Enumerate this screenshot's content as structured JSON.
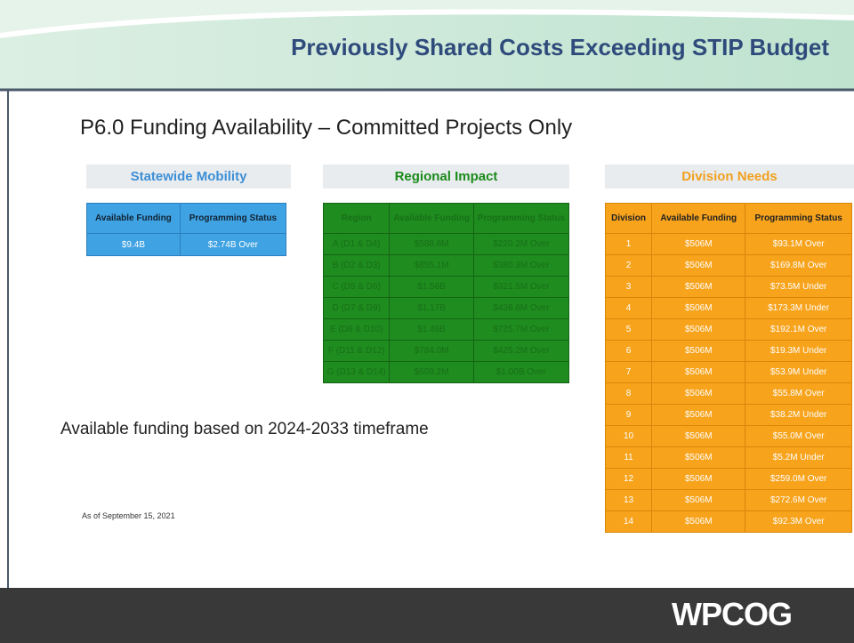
{
  "header": {
    "title": "Previously Shared Costs Exceeding STIP Budget"
  },
  "heading": "P6.0 Funding Availability – Committed Projects Only",
  "statewide": {
    "title": "Statewide Mobility",
    "columns": [
      "Available Funding",
      "Programming Status"
    ],
    "rows": [
      [
        "$9.4B",
        "$2.74B Over"
      ]
    ]
  },
  "regional": {
    "title": "Regional Impact",
    "columns": [
      "Region",
      "Available Funding",
      "Programming Status"
    ],
    "rows": [
      [
        "A (D1 & D4)",
        "$588.8M",
        "$220.2M Over"
      ],
      [
        "B (D2 & D3)",
        "$855.1M",
        "$380.3M Over"
      ],
      [
        "C (D5 & D6)",
        "$1.56B",
        "$321.5M Over"
      ],
      [
        "D (D7 & D9)",
        "$1.17B",
        "$438.6M Over"
      ],
      [
        "E (D8 & D10)",
        "$1.46B",
        "$725.7M Over"
      ],
      [
        "F (D11 & D12)",
        "$784.0M",
        "$425.2M Over"
      ],
      [
        "G (D13 & D14)",
        "$609.2M",
        "$1.00B Over"
      ]
    ]
  },
  "division": {
    "title": "Division Needs",
    "columns": [
      "Division",
      "Available Funding",
      "Programming Status"
    ],
    "rows": [
      [
        "1",
        "$506M",
        "$93.1M Over"
      ],
      [
        "2",
        "$506M",
        "$169.8M Over"
      ],
      [
        "3",
        "$506M",
        "$73.5M Under"
      ],
      [
        "4",
        "$506M",
        "$173.3M Under"
      ],
      [
        "5",
        "$506M",
        "$192.1M Over"
      ],
      [
        "6",
        "$506M",
        "$19.3M Under"
      ],
      [
        "7",
        "$506M",
        "$53.9M Under"
      ],
      [
        "8",
        "$506M",
        "$55.8M Over"
      ],
      [
        "9",
        "$506M",
        "$38.2M Under"
      ],
      [
        "10",
        "$506M",
        "$55.0M Over"
      ],
      [
        "11",
        "$506M",
        "$5.2M Under"
      ],
      [
        "12",
        "$506M",
        "$259.0M Over"
      ],
      [
        "13",
        "$506M",
        "$272.6M Over"
      ],
      [
        "14",
        "$506M",
        "$92.3M Over"
      ]
    ]
  },
  "note": "Available funding based on 2024-2033 timeframe",
  "as_of": "As of September 15, 2021",
  "logo": "WPCOG"
}
